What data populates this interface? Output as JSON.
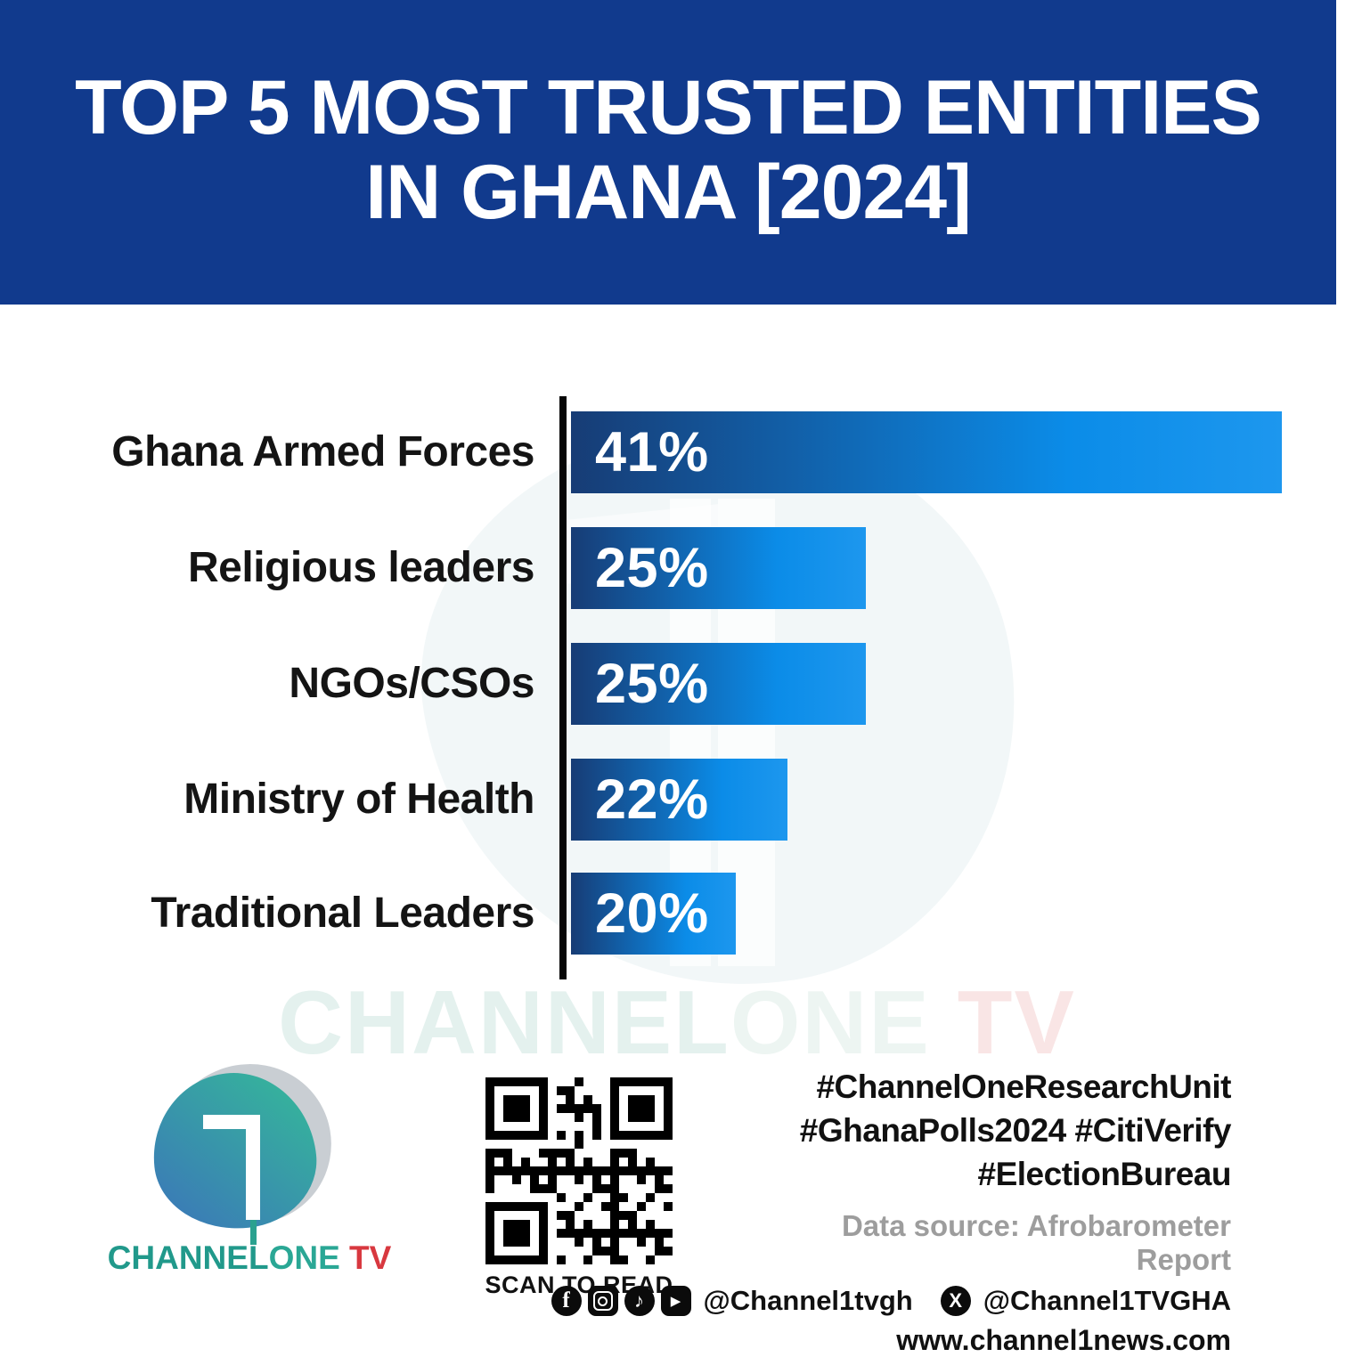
{
  "header": {
    "title_line1": "TOP 5 MOST TRUSTED ENTITIES",
    "title_line2": "IN GHANA [2024]",
    "bg_color": "#113a8d",
    "text_color": "#ffffff"
  },
  "chart_data": {
    "type": "bar",
    "orientation": "horizontal",
    "title": "Top 5 most trusted entities in Ghana [2024]",
    "categories": [
      "Ghana Armed Forces",
      "Religious leaders",
      "NGOs/CSOs",
      "Ministry of Health",
      "Traditional Leaders"
    ],
    "values": [
      41,
      25,
      25,
      22,
      20
    ],
    "value_labels": [
      "41%",
      "25%",
      "25%",
      "22%",
      "20%"
    ],
    "unit": "%",
    "bar_display_length_pct": [
      100,
      41.5,
      41.5,
      30.5,
      23.2
    ],
    "bar_gradient_start": "#173c75",
    "bar_gradient_end": "#0b8ce8",
    "axis_color": "#060606",
    "label_color": "#141414",
    "value_text_color": "#ffffff",
    "grid": false,
    "legend": false,
    "xlabel": "",
    "ylabel": ""
  },
  "watermark": {
    "part1": "CHANNEL",
    "part2": "ONE",
    "part3": " TV"
  },
  "footer": {
    "logo": {
      "number_glyph": "1",
      "brand_part1": "CHANNEL",
      "brand_part2": "ONE",
      "brand_part3": " TV",
      "teal_color": "#21998b",
      "red_color": "#d8383f"
    },
    "qr_caption": "SCAN TO READ",
    "hashtags": [
      "#ChannelOneResearchUnit",
      "#GhanaPolls2024 #CitiVerify",
      "#ElectionBureau"
    ],
    "data_source": "Data source: Afrobarometer Report",
    "social": {
      "icons": [
        "facebook-icon",
        "instagram-icon",
        "tiktok-icon",
        "youtube-icon"
      ],
      "handle1": "@Channel1tvgh",
      "x_icon": "x-icon",
      "handle2": "@Channel1TVGHA"
    },
    "website": "www.channel1news.com"
  }
}
